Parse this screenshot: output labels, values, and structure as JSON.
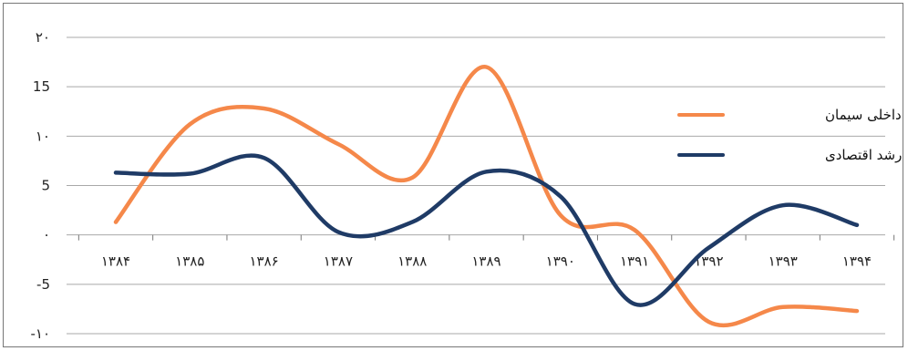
{
  "chart_data": {
    "type": "line",
    "categories": [
      "۱۳۸۴",
      "۱۳۸۵",
      "۱۳۸۶",
      "۱۳۸۷",
      "۱۳۸۸",
      "۱۳۸۹",
      "۱۳۹۰",
      "۱۳۹۱",
      "۱۳۹۲",
      "۱۳۹۳",
      "۱۳۹۴"
    ],
    "y_ticks": [
      "۲۰",
      "15",
      "۱۰",
      "5",
      "۰",
      "-5",
      "-۱۰"
    ],
    "ylim": [
      -10,
      20
    ],
    "series": [
      {
        "name": "رشد مصرف داخلی سیمان",
        "color": "#f5884a",
        "values": [
          1.3,
          11.2,
          12.8,
          9.2,
          5.8,
          17.0,
          2.0,
          0.5,
          -8.8,
          -7.3,
          -7.7
        ]
      },
      {
        "name": "رشد اقتصادی",
        "color": "#1f3b66",
        "values": [
          6.3,
          6.2,
          7.8,
          0.3,
          1.3,
          6.4,
          3.9,
          -7.0,
          -1.3,
          3.0,
          1.0
        ]
      }
    ],
    "grid": true,
    "legend": "right"
  }
}
